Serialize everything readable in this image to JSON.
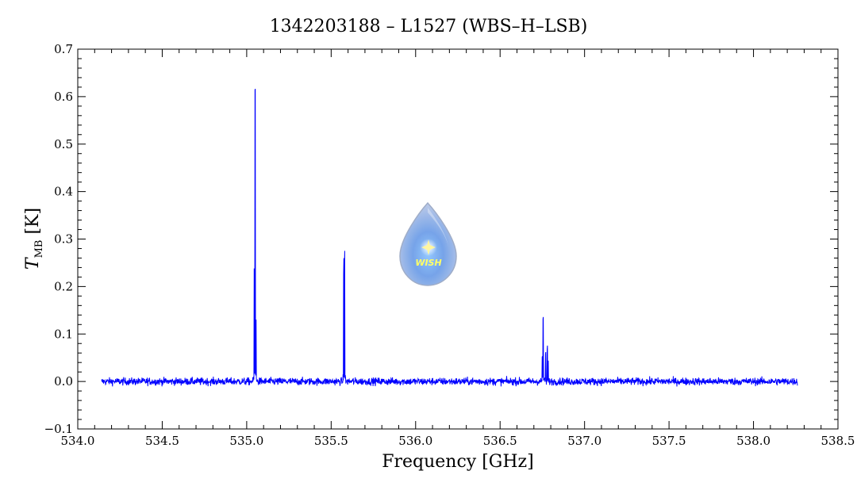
{
  "chart_data": {
    "type": "line",
    "title": "1342203188 – L1527 (WBS–H–LSB)",
    "xlabel": "Frequency [GHz]",
    "ylabel": {
      "symbol": "T",
      "subscript": "MB",
      "unit": "[K]"
    },
    "xlim": [
      534.0,
      538.5
    ],
    "ylim": [
      -0.1,
      0.7
    ],
    "x_ticks": [
      "534.0",
      "534.5",
      "535.0",
      "535.5",
      "536.0",
      "536.5",
      "537.0",
      "537.5",
      "538.0",
      "538.5"
    ],
    "y_ticks": [
      "−0.1",
      "0.0",
      "0.1",
      "0.2",
      "0.3",
      "0.4",
      "0.5",
      "0.6",
      "0.7"
    ],
    "grid": false,
    "series": [
      {
        "color": "#0000ff",
        "x_range": [
          534.14,
          538.26
        ],
        "baseline": 0.0,
        "noise_rms": 0.004,
        "lines": [
          {
            "x": 535.045,
            "y": 0.25
          },
          {
            "x": 535.05,
            "y": 0.66
          },
          {
            "x": 535.055,
            "y": 0.14
          },
          {
            "x": 535.575,
            "y": 0.26
          },
          {
            "x": 535.58,
            "y": 0.28
          },
          {
            "x": 536.75,
            "y": 0.05
          },
          {
            "x": 536.755,
            "y": 0.145
          },
          {
            "x": 536.77,
            "y": 0.065
          },
          {
            "x": 536.78,
            "y": 0.078
          },
          {
            "x": 536.785,
            "y": 0.045
          }
        ]
      }
    ]
  },
  "logo": {
    "text": "WISH"
  }
}
